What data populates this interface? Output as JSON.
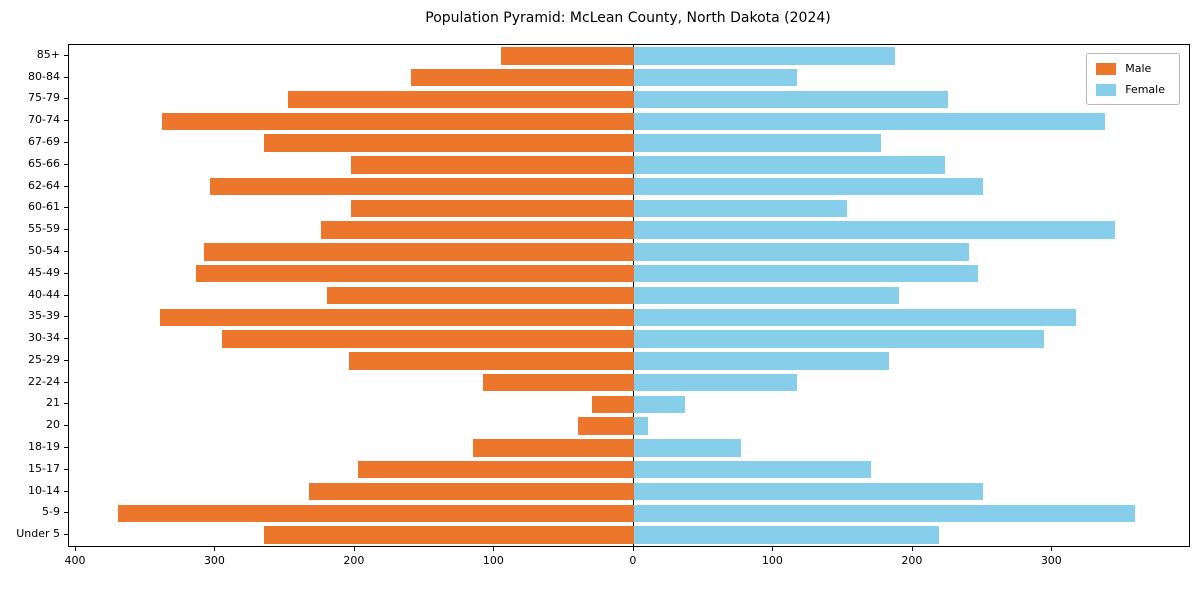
{
  "chart_data": {
    "type": "bar",
    "variant": "population-pyramid",
    "orientation": "horizontal",
    "title": "Population Pyramid: McLean County, North Dakota (2024)",
    "xlabel": "",
    "ylabel": "",
    "grid": false,
    "legend_position": "upper right",
    "categories": [
      "85+",
      "80-84",
      "75-79",
      "70-74",
      "67-69",
      "65-66",
      "62-64",
      "60-61",
      "55-59",
      "50-54",
      "45-49",
      "40-44",
      "35-39",
      "30-34",
      "25-29",
      "22-24",
      "21",
      "20",
      "18-19",
      "15-17",
      "10-14",
      "5-9",
      "Under 5"
    ],
    "series": [
      {
        "name": "Male",
        "side": "left",
        "color": "#ed762d",
        "values": [
          95,
          160,
          248,
          338,
          265,
          203,
          304,
          203,
          224,
          308,
          314,
          220,
          340,
          295,
          204,
          108,
          30,
          40,
          115,
          198,
          233,
          370,
          265
        ]
      },
      {
        "name": "Female",
        "side": "right",
        "color": "#87ceeb",
        "values": [
          187,
          117,
          225,
          338,
          177,
          223,
          250,
          153,
          345,
          240,
          247,
          190,
          317,
          294,
          183,
          117,
          37,
          10,
          77,
          170,
          250,
          359,
          219
        ]
      }
    ],
    "xlim": [
      -405,
      398
    ],
    "xticks": [
      -400,
      -300,
      -200,
      -100,
      0,
      100,
      200,
      300
    ],
    "xtick_labels": [
      "400",
      "300",
      "200",
      "100",
      "0",
      "100",
      "200",
      "300"
    ]
  }
}
